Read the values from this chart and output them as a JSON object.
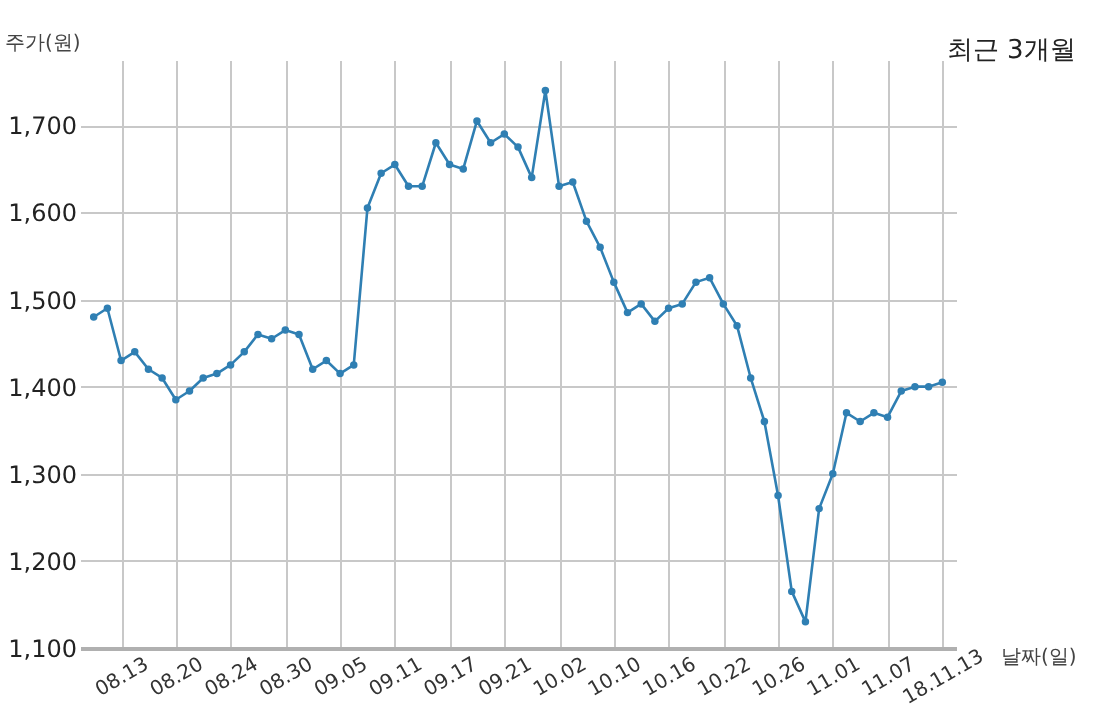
{
  "chart_data": {
    "type": "line",
    "title": "최근 3개월",
    "xlabel": "날짜(일)",
    "ylabel": "주가(원)",
    "categories": [
      null,
      null,
      "08.13",
      null,
      null,
      null,
      "08.20",
      null,
      null,
      null,
      "08.24",
      null,
      null,
      null,
      "08.30",
      null,
      null,
      null,
      "09.05",
      null,
      null,
      null,
      "09.11",
      null,
      null,
      null,
      "09.17",
      null,
      null,
      null,
      "09.21",
      null,
      null,
      null,
      "10.02",
      null,
      null,
      null,
      "10.10",
      null,
      null,
      null,
      "10.16",
      null,
      null,
      null,
      "10.22",
      null,
      null,
      null,
      "10.26",
      null,
      null,
      null,
      "11.01",
      null,
      null,
      null,
      "11.07",
      null,
      null,
      null,
      "18.11.13"
    ],
    "series": [
      {
        "color": "#2f7fb3",
        "values": [
          1480,
          1490,
          1430,
          1440,
          1420,
          1410,
          1385,
          1395,
          1410,
          1415,
          1425,
          1440,
          1460,
          1455,
          1465,
          1460,
          1420,
          1430,
          1415,
          1425,
          1605,
          1645,
          1655,
          1630,
          1630,
          1680,
          1655,
          1650,
          1705,
          1680,
          1690,
          1675,
          1640,
          1740,
          1630,
          1635,
          1590,
          1560,
          1520,
          1485,
          1495,
          1475,
          1490,
          1495,
          1520,
          1525,
          1495,
          1470,
          1410,
          1360,
          1275,
          1165,
          1130,
          1260,
          1300,
          1370,
          1360,
          1370,
          1365,
          1395,
          1400,
          1400,
          1405
        ]
      }
    ],
    "ylim": [
      1100,
      1775
    ],
    "yticks": [
      {
        "value": 1100,
        "label": "1,100"
      },
      {
        "value": 1200,
        "label": "1,200"
      },
      {
        "value": 1300,
        "label": "1,300"
      },
      {
        "value": 1400,
        "label": "1,400"
      },
      {
        "value": 1500,
        "label": "1,500"
      },
      {
        "value": 1600,
        "label": "1,600"
      },
      {
        "value": 1700,
        "label": "1,700"
      }
    ],
    "grid": true,
    "marker": "circle",
    "line_style": "solid"
  }
}
